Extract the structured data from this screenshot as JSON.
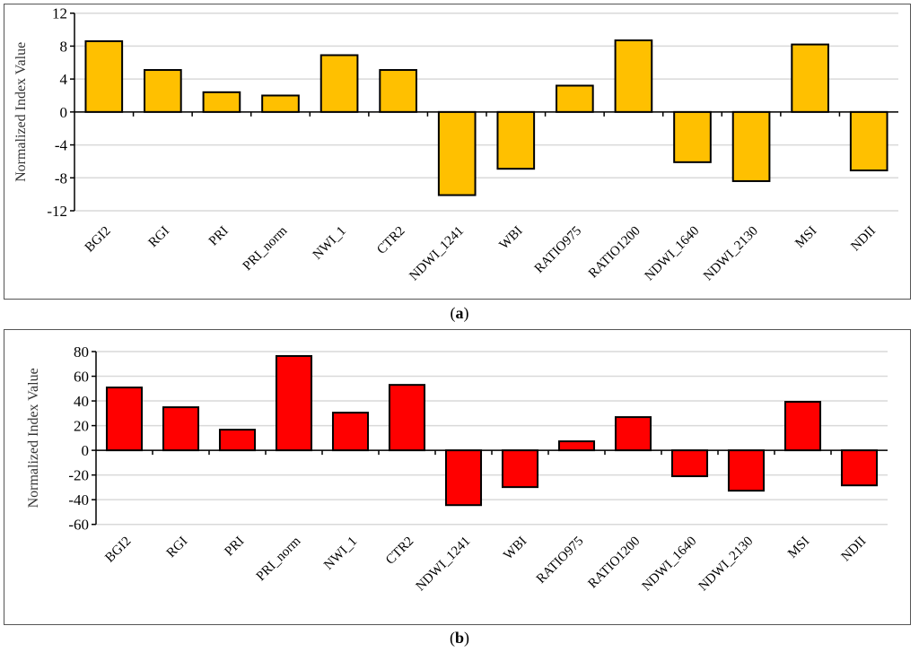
{
  "chart_data": [
    {
      "type": "bar",
      "panel_label": "a",
      "ylabel": "Normalized Index Value",
      "categories": [
        "BGI2",
        "RGI",
        "PRI",
        "PRI_norm",
        "NWI_1",
        "CTR2",
        "NDWI_1241",
        "WBI",
        "RATIO975",
        "RATIO1200",
        "NDWI_1640",
        "NDWI_2130",
        "MSI",
        "NDII"
      ],
      "values": [
        8.6,
        5.1,
        2.4,
        2.0,
        6.9,
        5.1,
        -10.1,
        -6.9,
        3.2,
        8.7,
        -6.1,
        -8.4,
        8.2,
        -7.1
      ],
      "ylim": [
        -12,
        12
      ],
      "yticks": [
        12,
        8,
        4,
        0,
        -4,
        -8,
        -12
      ],
      "grid": true,
      "color": "#FFC000"
    },
    {
      "type": "bar",
      "panel_label": "b",
      "ylabel": "Normalized Index Value",
      "categories": [
        "BGI2",
        "RGI",
        "PRI",
        "PRI_norm",
        "NWI_1",
        "CTR2",
        "NDWI_1241",
        "WBI",
        "RATIO975",
        "RATIO1200",
        "NDWI_1640",
        "NDWI_2130",
        "MSI",
        "NDII"
      ],
      "values": [
        50.9,
        34.9,
        16.7,
        76.4,
        30.5,
        53.0,
        -44.4,
        -29.8,
        7.3,
        26.9,
        -21.0,
        -32.7,
        39.3,
        -28.4
      ],
      "ylim": [
        -60,
        80
      ],
      "yticks": [
        80,
        60,
        40,
        20,
        0,
        -20,
        -40,
        -60
      ],
      "grid": true,
      "color": "#FF0000"
    }
  ]
}
